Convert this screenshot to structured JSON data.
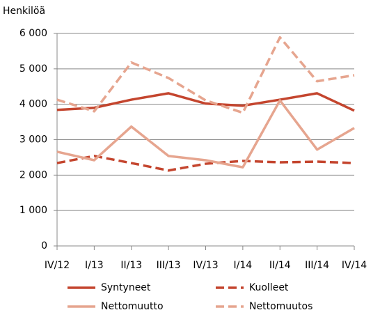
{
  "chart_data": {
    "type": "line",
    "y_axis_label": "Henkilöä",
    "categories": [
      "IV/12",
      "I/13",
      "II/13",
      "III/13",
      "IV/13",
      "I/14",
      "II/14",
      "III/14",
      "IV/14"
    ],
    "series": [
      {
        "name": "Syntyneet",
        "color": "#c4452e",
        "dashed": false,
        "values": [
          3840,
          3900,
          4130,
          4310,
          4020,
          3960,
          4130,
          4310,
          3820
        ]
      },
      {
        "name": "Kuolleet",
        "color": "#c4452e",
        "dashed": true,
        "values": [
          2340,
          2540,
          2340,
          2130,
          2320,
          2400,
          2360,
          2380,
          2340
        ]
      },
      {
        "name": "Nettomuutto",
        "color": "#e6a58f",
        "dashed": false,
        "values": [
          2660,
          2420,
          3370,
          2540,
          2420,
          2220,
          4110,
          2720,
          3330
        ]
      },
      {
        "name": "Nettomuutos",
        "color": "#e6a58f",
        "dashed": true,
        "values": [
          4130,
          3800,
          5180,
          4740,
          4110,
          3760,
          5890,
          4650,
          4820
        ]
      }
    ],
    "ylim": [
      0,
      6000
    ],
    "yticks": [
      {
        "value": 0,
        "label": "0"
      },
      {
        "value": 1000,
        "label": "1 000"
      },
      {
        "value": 2000,
        "label": "2 000"
      },
      {
        "value": 3000,
        "label": "3 000"
      },
      {
        "value": 4000,
        "label": "4 000"
      },
      {
        "value": 5000,
        "label": "5 000"
      },
      {
        "value": 6000,
        "label": "6 000"
      }
    ],
    "grid": true,
    "legend": "bottom"
  }
}
